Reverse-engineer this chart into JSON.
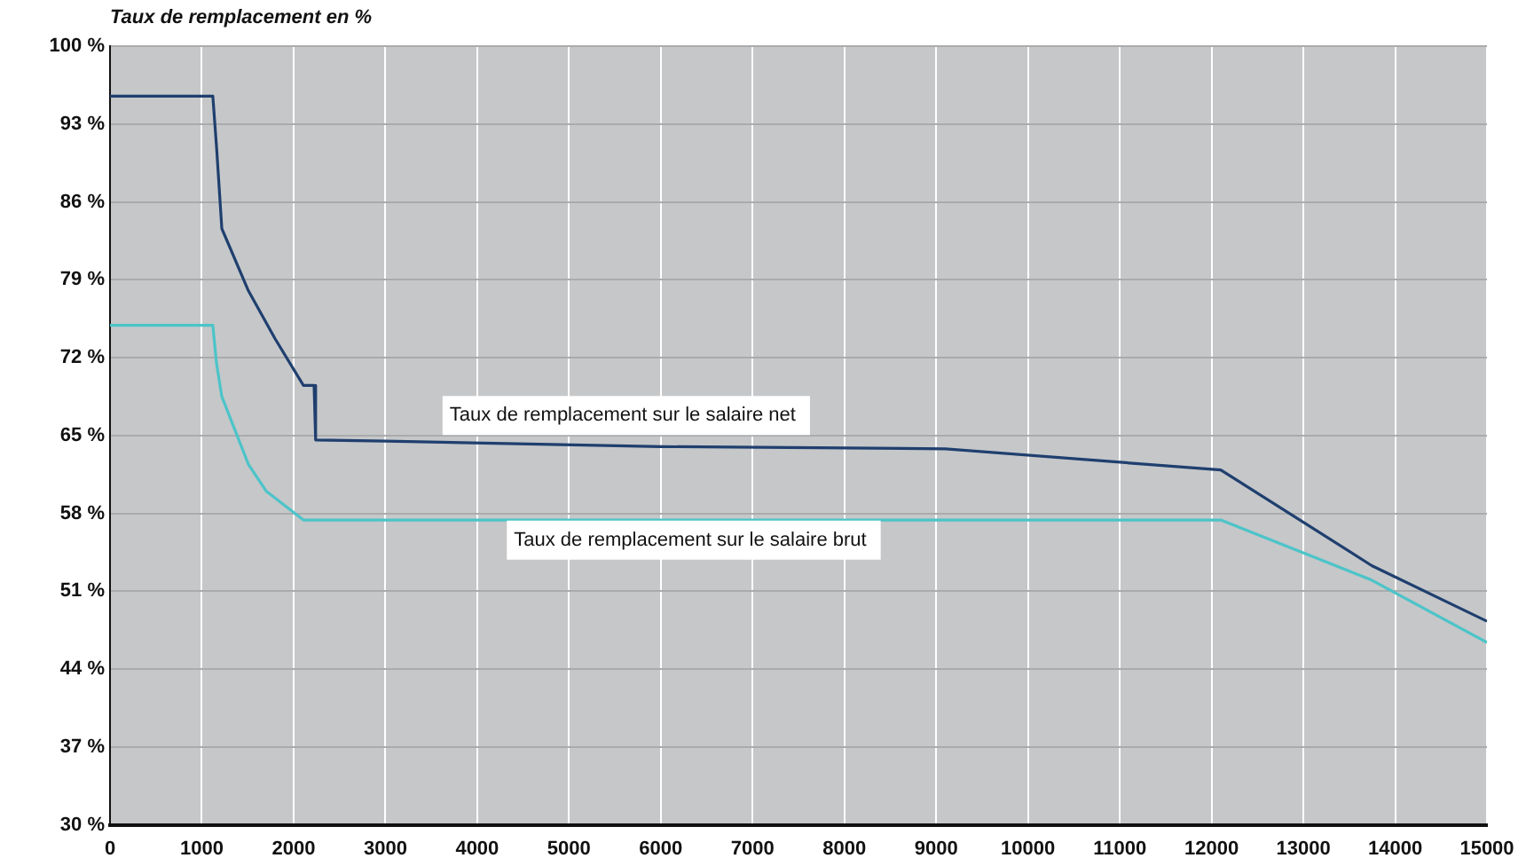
{
  "chart_data": {
    "type": "line",
    "ylabel": "Taux de remplacement en %",
    "xlim": [
      0,
      15000
    ],
    "xticks": [
      0,
      1000,
      2000,
      3000,
      4000,
      5000,
      6000,
      7000,
      8000,
      9000,
      10000,
      11000,
      12000,
      13000,
      14000,
      15000
    ],
    "ylim": [
      30,
      100
    ],
    "yticks": [
      {
        "value": 30,
        "label": "30 %"
      },
      {
        "value": 37,
        "label": "37 %"
      },
      {
        "value": 44,
        "label": "44 %"
      },
      {
        "value": 51,
        "label": "51 %"
      },
      {
        "value": 58,
        "label": "58 %"
      },
      {
        "value": 65,
        "label": "65 %"
      },
      {
        "value": 72,
        "label": "72 %"
      },
      {
        "value": 79,
        "label": "79 %"
      },
      {
        "value": 86,
        "label": "86 %"
      },
      {
        "value": 93,
        "label": "93 %"
      },
      {
        "value": 100,
        "label": "100 %"
      }
    ],
    "grid": true,
    "legend": false,
    "marker": "none",
    "line_style": "solid",
    "series": [
      {
        "name": "Taux de remplacement sur le salaire net",
        "color": "#1f3f6e",
        "x": [
          0,
          1120,
          1160,
          1218,
          1508,
          1798,
          2107,
          2223,
          2240,
          3000,
          6000,
          9100,
          12100,
          13745,
          15000
        ],
        "values": [
          95.5,
          95.5,
          91,
          83.6,
          78,
          73.7,
          69.5,
          69.5,
          64.6,
          64.5,
          64,
          63.8,
          61.9,
          53.3,
          48.3
        ]
      },
      {
        "name": "Taux de remplacement sur le salaire brut",
        "color": "#4cc4c8",
        "x": [
          0,
          1120,
          1160,
          1218,
          1508,
          1701,
          2107,
          12100,
          13745,
          15000
        ],
        "values": [
          74.9,
          74.9,
          71.5,
          68.5,
          62.4,
          60,
          57.4,
          57.4,
          52,
          46.4
        ]
      }
    ]
  }
}
